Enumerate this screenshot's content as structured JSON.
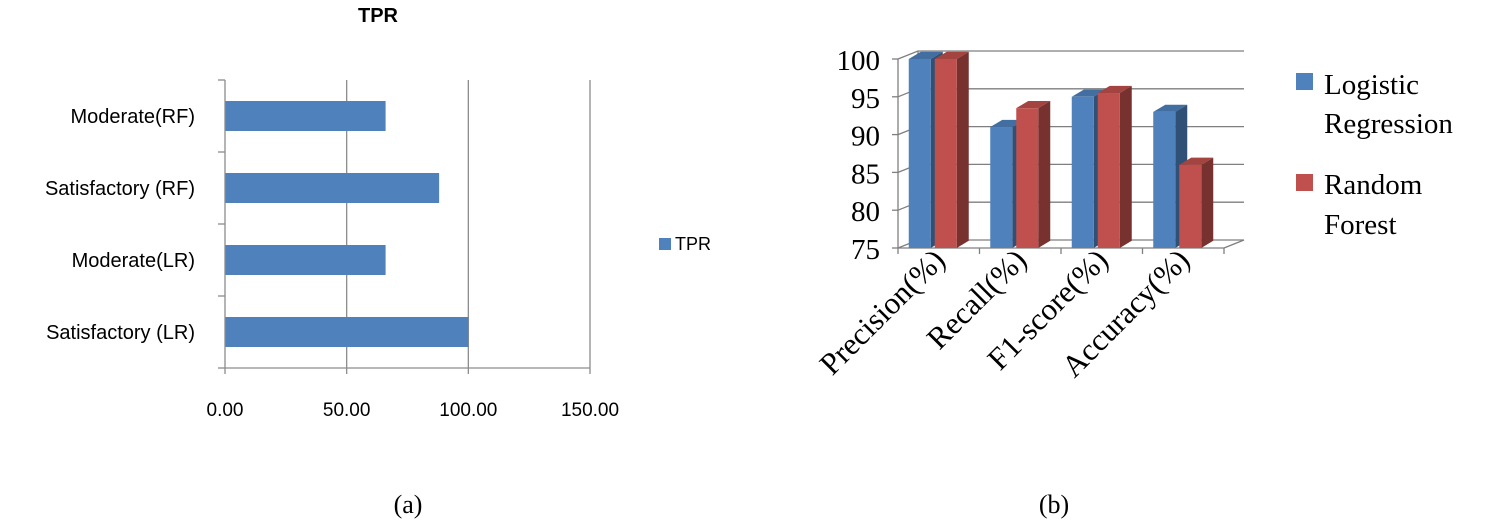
{
  "chart_data": [
    {
      "type": "bar",
      "orientation": "horizontal",
      "title": "TPR",
      "categories": [
        "Satisfactory (LR)",
        "Moderate(LR)",
        "Satisfactory (RF)",
        "Moderate(RF)"
      ],
      "series": [
        {
          "name": "TPR",
          "values": [
            100,
            66,
            88,
            66
          ],
          "color": "#4f81bd"
        }
      ],
      "xlim": [
        0,
        150
      ],
      "xticks": [
        "0.00",
        "50.00",
        "100.00",
        "150.00"
      ],
      "grid": "vertical",
      "legend": "right",
      "caption": "(a)"
    },
    {
      "type": "bar",
      "style": "3d-clustered",
      "categories": [
        "Precision(%)",
        "Recall(%)",
        "F1-score(%)",
        "Accuracy(%)"
      ],
      "series": [
        {
          "name": "Logistic Regression",
          "values": [
            100,
            91,
            95,
            93
          ],
          "color": "#4f81bd"
        },
        {
          "name": "Random Forest",
          "values": [
            100,
            93.5,
            95.5,
            86
          ],
          "color": "#c0504d"
        }
      ],
      "ylim": [
        75,
        100
      ],
      "yticks": [
        "75",
        "80",
        "85",
        "90",
        "95",
        "100"
      ],
      "grid": "horizontal",
      "legend": "right",
      "caption": "(b)"
    }
  ],
  "legend_a": {
    "label": "TPR"
  },
  "legend_b": {
    "line1a": "Logistic",
    "line1b": "Regression",
    "line2a": "Random",
    "line2b": "Forest"
  }
}
